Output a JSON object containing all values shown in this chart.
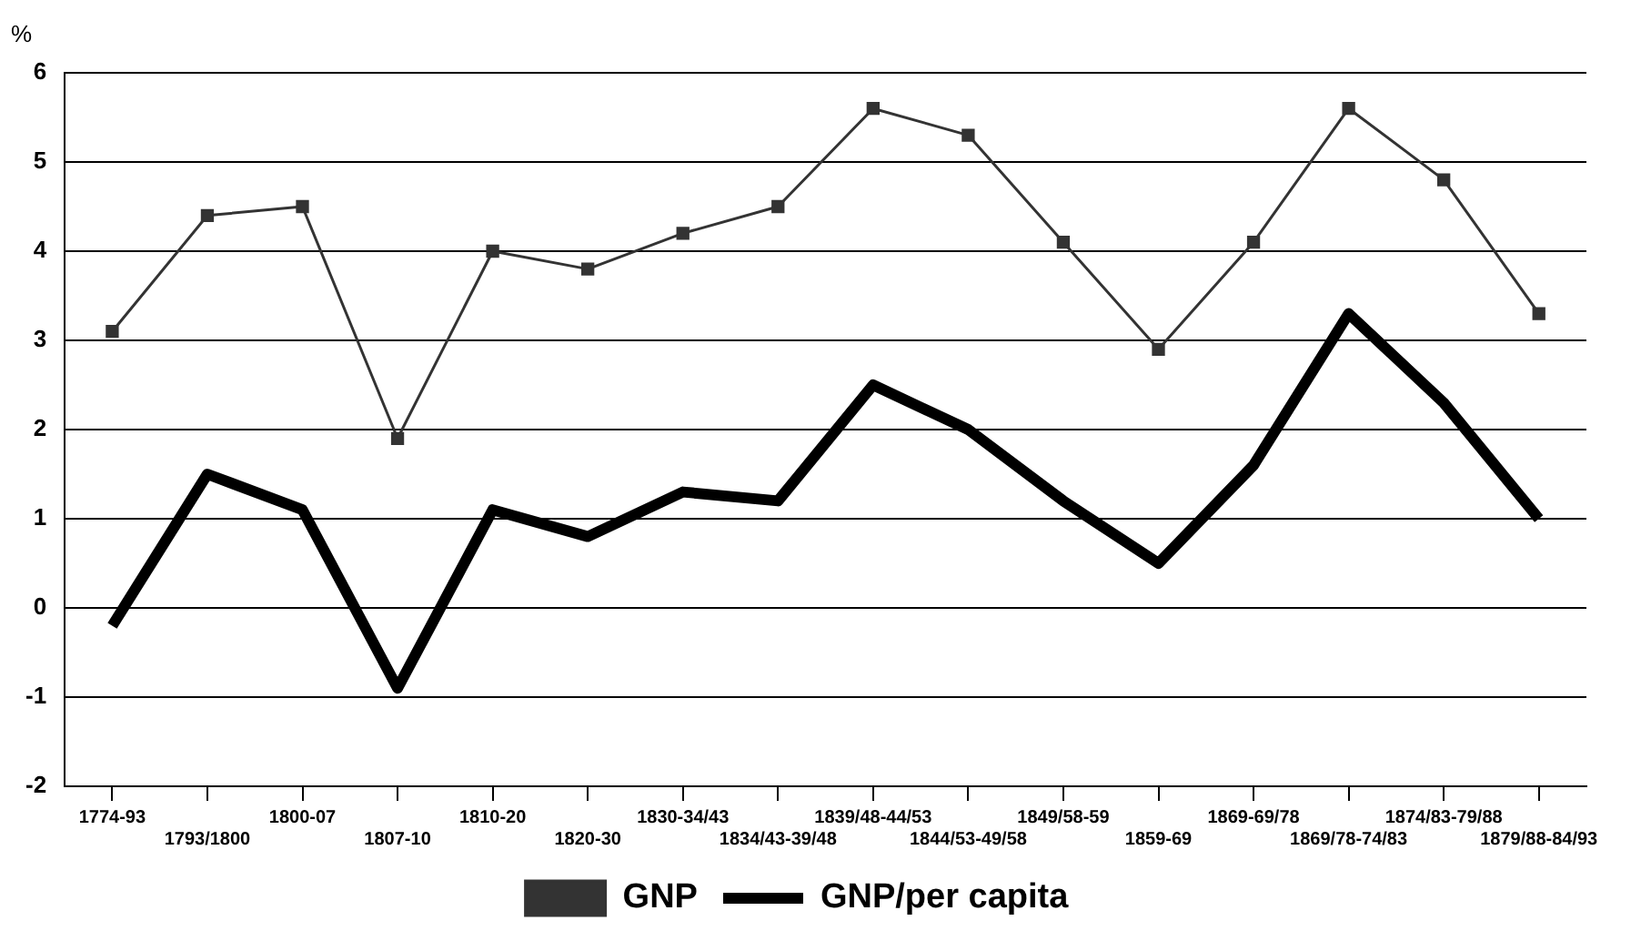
{
  "chart_data": {
    "type": "line",
    "ylabel": "%",
    "categories": [
      "1774-93",
      "1793/1800",
      "1800-07",
      "1807-10",
      "1810-20",
      "1820-30",
      "1830-34/43",
      "1834/43-39/48",
      "1839/48-44/53",
      "1844/53-49/58",
      "1849/58-59",
      "1859-69",
      "1869-69/78",
      "1869/78-74/83",
      "1874/83-79/88",
      "1879/88-84/93"
    ],
    "series": [
      {
        "name": "GNP",
        "color": "#333333",
        "marker": "square",
        "values": [
          3.1,
          4.4,
          4.5,
          1.9,
          4.0,
          3.8,
          4.2,
          4.5,
          5.6,
          5.3,
          4.1,
          2.9,
          4.1,
          5.6,
          4.8,
          3.3
        ]
      },
      {
        "name": "GNP/per capita",
        "color": "#000000",
        "marker": "none",
        "values": [
          -0.2,
          1.5,
          1.1,
          -0.9,
          1.1,
          0.8,
          1.3,
          1.2,
          2.5,
          2.0,
          1.2,
          0.5,
          1.6,
          3.3,
          2.3,
          1.0
        ]
      }
    ],
    "ylim": [
      -2,
      6
    ],
    "yticks": [
      -2,
      -1,
      0,
      1,
      2,
      3,
      4,
      5,
      6
    ],
    "grid": "y",
    "legend": "bottom",
    "line_style": "solid"
  }
}
